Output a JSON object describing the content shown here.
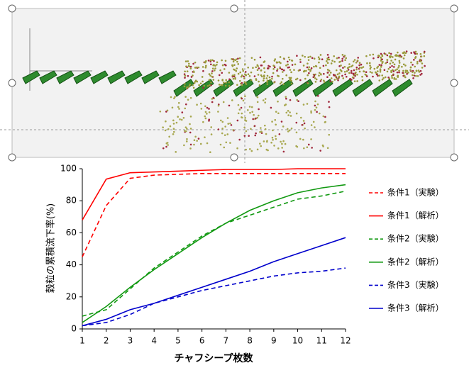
{
  "chart_data": {
    "type": "line",
    "x_label": "チャフシープ枚数",
    "y_label": "穀粒の累積流下率(%)",
    "x": [
      1,
      2,
      3,
      4,
      5,
      6,
      7,
      8,
      9,
      10,
      11,
      12
    ],
    "xlim": [
      1,
      12
    ],
    "xticks": [
      1,
      2,
      3,
      4,
      5,
      6,
      7,
      8,
      9,
      10,
      11,
      12
    ],
    "ylim": [
      0,
      100
    ],
    "yticks": [
      0,
      20,
      40,
      60,
      80,
      100
    ],
    "series": [
      {
        "name": "条件1（実験）",
        "color": "#ff0000",
        "dashed": true,
        "values": [
          45,
          77,
          94,
          96,
          96.5,
          97,
          97,
          97,
          97,
          97,
          97,
          97
        ]
      },
      {
        "name": "条件1（解析）",
        "color": "#ff0000",
        "dashed": false,
        "values": [
          68,
          93.5,
          97.5,
          98,
          98.5,
          99,
          99.5,
          99.5,
          99.5,
          100,
          100,
          100
        ]
      },
      {
        "name": "条件2（実験）",
        "color": "#119911",
        "dashed": true,
        "values": [
          8,
          12,
          25,
          38,
          48,
          58,
          66,
          71,
          76,
          81,
          83,
          86
        ]
      },
      {
        "name": "条件2（解析）",
        "color": "#119911",
        "dashed": false,
        "values": [
          4,
          14,
          26,
          37,
          47,
          57,
          66,
          74,
          80,
          85,
          88,
          90
        ]
      },
      {
        "name": "条件3（実験）",
        "color": "#0000cc",
        "dashed": true,
        "values": [
          2,
          4,
          9,
          16,
          20,
          24,
          27,
          30,
          33,
          35,
          36,
          38
        ]
      },
      {
        "name": "条件3（解析）",
        "color": "#0000cc",
        "dashed": false,
        "values": [
          2,
          6,
          12,
          16,
          21,
          26,
          31,
          36,
          42,
          47,
          52,
          57
        ]
      }
    ]
  }
}
